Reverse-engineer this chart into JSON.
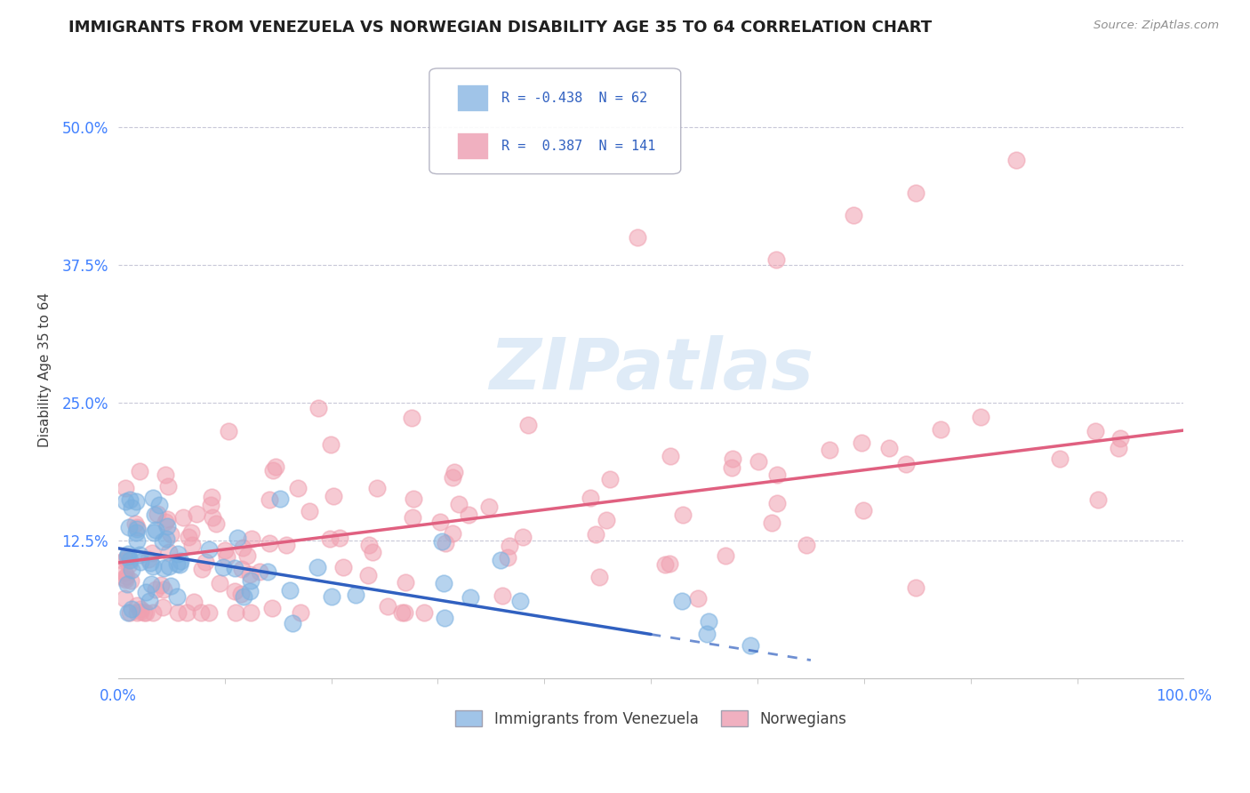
{
  "title": "IMMIGRANTS FROM VENEZUELA VS NORWEGIAN DISABILITY AGE 35 TO 64 CORRELATION CHART",
  "source_text": "Source: ZipAtlas.com",
  "ylabel": "Disability Age 35 to 64",
  "xlim": [
    0.0,
    1.0
  ],
  "ylim": [
    0.0,
    0.56
  ],
  "xtick_positions": [
    0.0,
    1.0
  ],
  "xtick_labels": [
    "0.0%",
    "100.0%"
  ],
  "ytick_values": [
    0.125,
    0.25,
    0.375,
    0.5
  ],
  "ytick_labels": [
    "12.5%",
    "25.0%",
    "37.5%",
    "50.0%"
  ],
  "blue_scatter_color": "#7ab0e0",
  "pink_scatter_color": "#f0a0b0",
  "blue_line_color": "#3060c0",
  "pink_line_color": "#e06080",
  "watermark_color": "#c0d8f0",
  "background_color": "#ffffff",
  "grid_color": "#c8c8d8",
  "title_color": "#202020",
  "title_fontsize": 13,
  "axis_label_color": "#404040",
  "tick_label_color_x": "#4080ff",
  "tick_label_color_y": "#4080ff",
  "source_color": "#909090",
  "legend_blue_color": "#a0c4e8",
  "legend_pink_color": "#f0b0c0",
  "legend_text_color": "#3060c0",
  "blue_R": -0.438,
  "blue_N": 62,
  "pink_R": 0.387,
  "pink_N": 141,
  "blue_line_x0": 0.0,
  "blue_line_y0": 0.118,
  "blue_line_x1": 0.5,
  "blue_line_y1": 0.04,
  "pink_line_x0": 0.0,
  "pink_line_y0": 0.105,
  "pink_line_x1": 1.0,
  "pink_line_y1": 0.225
}
